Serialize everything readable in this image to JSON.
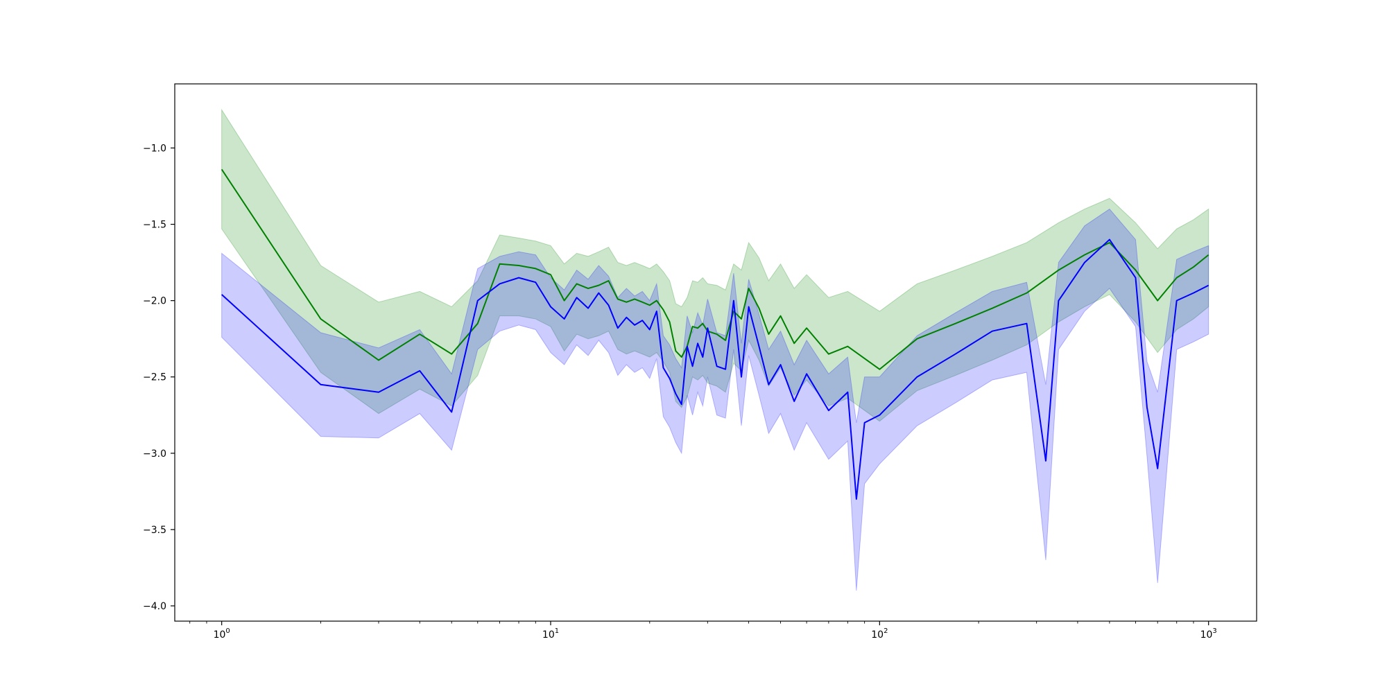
{
  "chart_data": {
    "type": "line",
    "title": "",
    "xlabel": "",
    "ylabel": "",
    "xscale": "log",
    "xlim": [
      0.72,
      1400
    ],
    "ylim": [
      -4.1,
      -0.58
    ],
    "grid": false,
    "legend": "none",
    "x_ticks": [
      {
        "value": 1,
        "base": "10",
        "exp": "0"
      },
      {
        "value": 10,
        "base": "10",
        "exp": "1"
      },
      {
        "value": 100,
        "base": "10",
        "exp": "2"
      },
      {
        "value": 1000,
        "base": "10",
        "exp": "3"
      }
    ],
    "y_ticks": [
      {
        "value": -1.0,
        "label": "−1.0"
      },
      {
        "value": -1.5,
        "label": "−1.5"
      },
      {
        "value": -2.0,
        "label": "−2.0"
      },
      {
        "value": -2.5,
        "label": "−2.5"
      },
      {
        "value": -3.0,
        "label": "−3.0"
      },
      {
        "value": -3.5,
        "label": "−3.5"
      },
      {
        "value": -4.0,
        "label": "−4.0"
      }
    ],
    "series": [
      {
        "color": "#008000",
        "fill_color": "#008000",
        "fill_opacity": 0.2,
        "x": [
          1,
          2,
          3,
          4,
          5,
          6,
          7,
          8,
          9,
          10,
          11,
          12,
          13,
          14,
          15,
          16,
          17,
          18,
          19,
          20,
          21,
          22,
          23,
          24,
          25,
          26,
          27,
          28,
          29,
          30,
          32,
          34,
          36,
          38,
          40,
          43,
          46,
          50,
          55,
          60,
          70,
          80,
          100,
          130,
          170,
          220,
          280,
          350,
          420,
          500,
          600,
          700,
          800,
          900,
          1000
        ],
        "mean": [
          -1.14,
          -2.12,
          -2.39,
          -2.22,
          -2.35,
          -2.15,
          -1.76,
          -1.77,
          -1.79,
          -1.83,
          -2.0,
          -1.89,
          -1.92,
          -1.9,
          -1.87,
          -1.99,
          -2.01,
          -1.99,
          -2.01,
          -2.03,
          -2.0,
          -2.06,
          -2.14,
          -2.33,
          -2.37,
          -2.3,
          -2.17,
          -2.18,
          -2.15,
          -2.2,
          -2.22,
          -2.26,
          -2.07,
          -2.12,
          -1.92,
          -2.05,
          -2.22,
          -2.1,
          -2.28,
          -2.18,
          -2.35,
          -2.3,
          -2.45,
          -2.25,
          -2.15,
          -2.05,
          -1.95,
          -1.8,
          -1.7,
          -1.62,
          -1.8,
          -2.0,
          -1.85,
          -1.78,
          -1.7
        ],
        "lower": [
          -1.53,
          -2.47,
          -2.74,
          -2.58,
          -2.69,
          -2.49,
          -2.1,
          -2.1,
          -2.12,
          -2.17,
          -2.33,
          -2.22,
          -2.25,
          -2.23,
          -2.2,
          -2.32,
          -2.35,
          -2.33,
          -2.35,
          -2.37,
          -2.34,
          -2.4,
          -2.47,
          -2.66,
          -2.7,
          -2.63,
          -2.5,
          -2.52,
          -2.49,
          -2.54,
          -2.56,
          -2.6,
          -2.41,
          -2.46,
          -2.26,
          -2.39,
          -2.56,
          -2.44,
          -2.62,
          -2.52,
          -2.69,
          -2.64,
          -2.79,
          -2.59,
          -2.49,
          -2.39,
          -2.29,
          -2.14,
          -2.04,
          -1.96,
          -2.14,
          -2.34,
          -2.19,
          -2.12,
          -2.04
        ],
        "upper": [
          -0.75,
          -1.77,
          -2.01,
          -1.94,
          -2.04,
          -1.87,
          -1.57,
          -1.59,
          -1.61,
          -1.64,
          -1.76,
          -1.69,
          -1.71,
          -1.68,
          -1.65,
          -1.75,
          -1.77,
          -1.75,
          -1.77,
          -1.79,
          -1.76,
          -1.81,
          -1.87,
          -2.02,
          -2.04,
          -1.98,
          -1.87,
          -1.88,
          -1.85,
          -1.89,
          -1.9,
          -1.93,
          -1.76,
          -1.8,
          -1.62,
          -1.72,
          -1.87,
          -1.76,
          -1.92,
          -1.83,
          -1.98,
          -1.94,
          -2.07,
          -1.89,
          -1.8,
          -1.71,
          -1.62,
          -1.49,
          -1.4,
          -1.33,
          -1.49,
          -1.66,
          -1.53,
          -1.47,
          -1.4
        ]
      },
      {
        "color": "#0000ff",
        "fill_color": "#0000ff",
        "fill_opacity": 0.2,
        "x": [
          1,
          2,
          3,
          4,
          5,
          6,
          7,
          8,
          9,
          10,
          11,
          12,
          13,
          14,
          15,
          16,
          17,
          18,
          19,
          20,
          21,
          22,
          23,
          24,
          25,
          26,
          27,
          28,
          29,
          30,
          32,
          34,
          36,
          38,
          40,
          43,
          46,
          50,
          55,
          60,
          70,
          80,
          85,
          90,
          100,
          130,
          170,
          220,
          280,
          320,
          350,
          420,
          500,
          600,
          650,
          700,
          800,
          900,
          1000
        ],
        "mean": [
          -1.96,
          -2.55,
          -2.6,
          -2.46,
          -2.73,
          -2.0,
          -1.89,
          -1.85,
          -1.88,
          -2.04,
          -2.12,
          -1.98,
          -2.05,
          -1.95,
          -2.03,
          -2.18,
          -2.11,
          -2.16,
          -2.13,
          -2.19,
          -2.07,
          -2.44,
          -2.51,
          -2.61,
          -2.68,
          -2.3,
          -2.43,
          -2.28,
          -2.37,
          -2.18,
          -2.43,
          -2.45,
          -2.0,
          -2.5,
          -2.04,
          -2.3,
          -2.55,
          -2.42,
          -2.66,
          -2.48,
          -2.72,
          -2.6,
          -3.3,
          -2.8,
          -2.75,
          -2.5,
          -2.35,
          -2.2,
          -2.15,
          -3.05,
          -2.0,
          -1.75,
          -1.6,
          -1.85,
          -2.7,
          -3.1,
          -2.0,
          -1.95,
          -1.9
        ],
        "lower": [
          -2.24,
          -2.89,
          -2.9,
          -2.74,
          -2.98,
          -2.32,
          -2.2,
          -2.16,
          -2.19,
          -2.34,
          -2.42,
          -2.29,
          -2.36,
          -2.26,
          -2.34,
          -2.49,
          -2.42,
          -2.47,
          -2.44,
          -2.51,
          -2.38,
          -2.76,
          -2.83,
          -2.93,
          -3.0,
          -2.62,
          -2.75,
          -2.6,
          -2.69,
          -2.5,
          -2.75,
          -2.77,
          -2.32,
          -2.82,
          -2.36,
          -2.62,
          -2.87,
          -2.74,
          -2.98,
          -2.8,
          -3.04,
          -2.92,
          -3.9,
          -3.2,
          -3.07,
          -2.82,
          -2.67,
          -2.52,
          -2.47,
          -3.7,
          -2.32,
          -2.07,
          -1.92,
          -2.17,
          -3.02,
          -3.85,
          -2.32,
          -2.27,
          -2.22
        ],
        "upper": [
          -1.69,
          -2.21,
          -2.31,
          -2.19,
          -2.48,
          -1.79,
          -1.71,
          -1.68,
          -1.7,
          -1.85,
          -1.93,
          -1.8,
          -1.86,
          -1.77,
          -1.84,
          -1.98,
          -1.92,
          -1.97,
          -1.94,
          -2.0,
          -1.89,
          -2.23,
          -2.29,
          -2.38,
          -2.44,
          -2.1,
          -2.21,
          -2.08,
          -2.16,
          -1.99,
          -2.21,
          -2.23,
          -1.82,
          -2.28,
          -1.86,
          -2.09,
          -2.32,
          -2.2,
          -2.42,
          -2.26,
          -2.48,
          -2.37,
          -2.8,
          -2.5,
          -2.5,
          -2.23,
          -2.08,
          -1.94,
          -1.88,
          -2.55,
          -1.75,
          -1.51,
          -1.4,
          -1.6,
          -2.4,
          -2.6,
          -1.73,
          -1.68,
          -1.64
        ]
      }
    ]
  }
}
